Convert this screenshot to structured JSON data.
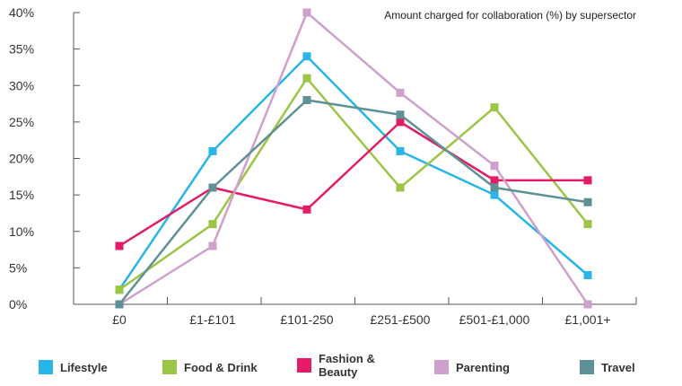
{
  "chart_data": {
    "type": "line",
    "title": "Amount charged for collaboration (%) by supersector",
    "xlabel": "",
    "ylabel": "",
    "categories": [
      "£0",
      "£1-£101",
      "£101-250",
      "£251-£500",
      "£501-£1,000",
      "£1,001+"
    ],
    "y_ticks": [
      "0%",
      "5%",
      "10%",
      "15%",
      "20%",
      "25%",
      "30%",
      "35%",
      "40%"
    ],
    "ylim": [
      0,
      40
    ],
    "grid": false,
    "legend_position": "bottom",
    "series": [
      {
        "name": "Lifestyle",
        "color": "#29b5e8",
        "values": [
          2,
          21,
          34,
          21,
          15,
          4
        ]
      },
      {
        "name": "Food & Drink",
        "color": "#9bc545",
        "values": [
          2,
          11,
          31,
          16,
          27,
          11
        ]
      },
      {
        "name": "Fashion & Beauty",
        "color": "#e41c67",
        "values": [
          8,
          16,
          13,
          25,
          17,
          17
        ]
      },
      {
        "name": "Parenting",
        "color": "#cfa0cc",
        "values": [
          0,
          8,
          40,
          29,
          19,
          0
        ]
      },
      {
        "name": "Travel",
        "color": "#5e9196",
        "values": [
          0,
          16,
          28,
          26,
          16,
          14
        ]
      }
    ]
  }
}
